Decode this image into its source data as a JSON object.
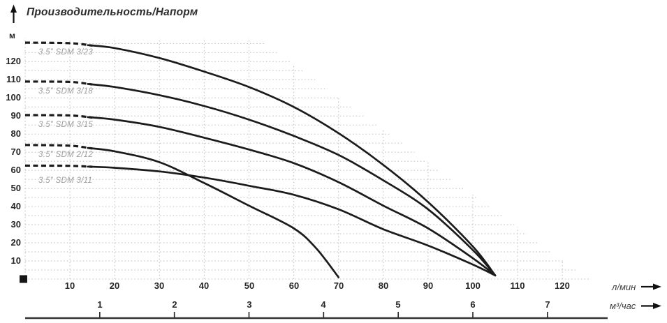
{
  "chart_data": {
    "type": "line",
    "title": "Производительность/Напорм",
    "y_unit": "м",
    "x_unit": "л/мин",
    "x2_unit": "м³/час",
    "xlabel": "л/мин",
    "ylabel": "м",
    "xlim": [
      0,
      130
    ],
    "ylim": [
      0,
      133
    ],
    "y_ticks": [
      10,
      20,
      30,
      40,
      50,
      60,
      70,
      80,
      90,
      100,
      110,
      120
    ],
    "x_ticks": [
      10,
      20,
      30,
      40,
      50,
      60,
      70,
      80,
      90,
      100,
      110,
      120
    ],
    "x2_ticks": [
      1,
      2,
      3,
      4,
      5,
      6,
      7
    ],
    "x2_to_x_factor": 16.667,
    "grid": {
      "style": "dotted",
      "horizontal_step_m": 5,
      "vertical_step_lmin": 10,
      "staircase_envelope": {
        "flat_until_lmin": 52,
        "top_m": 133,
        "slope_m_per_lmin": 1.8
      }
    },
    "legend_position": "labels-on-curves",
    "series": [
      {
        "name": "3.5” SDM 3/23",
        "dashed_start_until_lmin": 15,
        "points": [
          [
            0,
            130.5
          ],
          [
            10,
            130.2
          ],
          [
            20,
            127.5
          ],
          [
            30,
            122
          ],
          [
            40,
            114.5
          ],
          [
            50,
            106
          ],
          [
            60,
            95
          ],
          [
            70,
            80.5
          ],
          [
            80,
            63
          ],
          [
            90,
            42.5
          ],
          [
            100,
            18
          ],
          [
            105,
            2
          ]
        ]
      },
      {
        "name": "3.5” SDM 3/18",
        "dashed_start_until_lmin": 15,
        "points": [
          [
            0,
            109
          ],
          [
            10,
            108.8
          ],
          [
            20,
            106
          ],
          [
            30,
            101.5
          ],
          [
            40,
            95.5
          ],
          [
            50,
            88
          ],
          [
            60,
            79
          ],
          [
            70,
            68.5
          ],
          [
            80,
            54.5
          ],
          [
            90,
            38.5
          ],
          [
            100,
            16
          ],
          [
            105,
            2
          ]
        ]
      },
      {
        "name": "3.5” SDM 3/15",
        "dashed_start_until_lmin": 15,
        "points": [
          [
            0,
            90.5
          ],
          [
            10,
            90.3
          ],
          [
            20,
            88
          ],
          [
            30,
            84
          ],
          [
            40,
            78
          ],
          [
            50,
            71.5
          ],
          [
            60,
            64
          ],
          [
            70,
            53.5
          ],
          [
            80,
            40.5
          ],
          [
            90,
            28
          ],
          [
            100,
            11.5
          ],
          [
            105,
            2
          ]
        ]
      },
      {
        "name": "3.5” SDM 2/12",
        "dashed_start_until_lmin": 15,
        "points": [
          [
            0,
            74
          ],
          [
            10,
            73.6
          ],
          [
            20,
            70.5
          ],
          [
            30,
            64.5
          ],
          [
            40,
            53
          ],
          [
            50,
            40.5
          ],
          [
            60,
            28
          ],
          [
            65,
            17
          ],
          [
            70,
            1
          ]
        ]
      },
      {
        "name": "3.5” SDM 3/11",
        "dashed_start_until_lmin": 15,
        "points": [
          [
            0,
            62.6
          ],
          [
            10,
            62.5
          ],
          [
            20,
            61.4
          ],
          [
            30,
            59.4
          ],
          [
            40,
            56
          ],
          [
            50,
            51.5
          ],
          [
            60,
            46.5
          ],
          [
            70,
            38.5
          ],
          [
            80,
            27.5
          ],
          [
            90,
            18.5
          ],
          [
            100,
            8
          ],
          [
            105,
            2
          ]
        ]
      }
    ]
  },
  "colors": {
    "curve": "#1b1b1b",
    "grid": "#c2c2c2",
    "series_label": "#9e9e9e",
    "tick_text": "#262626",
    "axis_unit_text": "#3c3c3c",
    "rule": "#333333",
    "marker": "#161616"
  }
}
